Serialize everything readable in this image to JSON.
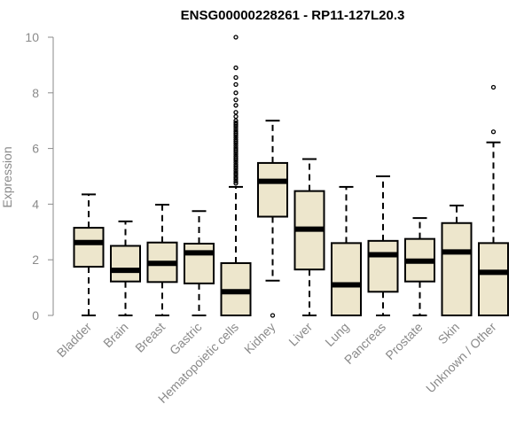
{
  "chart_data": {
    "type": "boxplot",
    "title": "ENSG00000228261 - RP11-127L20.3",
    "xlabel": "",
    "ylabel": "Expression",
    "ylim": [
      0,
      10
    ],
    "yticks": [
      0,
      2,
      4,
      6,
      8,
      10
    ],
    "box_fill": "#ede6cc",
    "axis_color": "#8a8a8a",
    "categories": [
      "Bladder",
      "Brain",
      "Breast",
      "Gastric",
      "Hematopoietic cells",
      "Kidney",
      "Liver",
      "Lung",
      "Pancreas",
      "Prostate",
      "Skin",
      "Unknown / Other"
    ],
    "boxes": [
      {
        "name": "Bladder",
        "min": 0,
        "q1": 1.75,
        "median": 2.62,
        "q3": 3.15,
        "max": 4.35,
        "outliers": []
      },
      {
        "name": "Brain",
        "min": 0,
        "q1": 1.22,
        "median": 1.62,
        "q3": 2.5,
        "max": 3.38,
        "outliers": []
      },
      {
        "name": "Breast",
        "min": 0,
        "q1": 1.2,
        "median": 1.87,
        "q3": 2.62,
        "max": 3.98,
        "outliers": []
      },
      {
        "name": "Gastric",
        "min": 0,
        "q1": 1.15,
        "median": 2.25,
        "q3": 2.58,
        "max": 3.75,
        "outliers": []
      },
      {
        "name": "Hematopoietic cells",
        "min": 0,
        "q1": 0,
        "median": 0.85,
        "q3": 1.88,
        "max": 4.62,
        "outliers": [
          4.75,
          4.82,
          4.9,
          4.97,
          5.05,
          5.12,
          5.2,
          5.28,
          5.35,
          5.42,
          5.5,
          5.58,
          5.65,
          5.72,
          5.8,
          5.88,
          5.95,
          6.02,
          6.1,
          6.18,
          6.25,
          6.32,
          6.4,
          6.48,
          6.55,
          6.62,
          6.7,
          6.78,
          6.85,
          6.92,
          7.0,
          7.15,
          7.3,
          7.55,
          7.75,
          8.0,
          8.3,
          8.55,
          8.9,
          10.0
        ]
      },
      {
        "name": "Kidney",
        "min": 1.25,
        "q1": 3.55,
        "median": 4.82,
        "q3": 5.48,
        "max": 7.0,
        "outliers": [
          0
        ]
      },
      {
        "name": "Liver",
        "min": 0,
        "q1": 1.65,
        "median": 3.1,
        "q3": 4.47,
        "max": 5.62,
        "outliers": []
      },
      {
        "name": "Lung",
        "min": 0,
        "q1": 0,
        "median": 1.1,
        "q3": 2.6,
        "max": 4.62,
        "outliers": []
      },
      {
        "name": "Pancreas",
        "min": 0,
        "q1": 0.85,
        "median": 2.18,
        "q3": 2.68,
        "max": 5.0,
        "outliers": []
      },
      {
        "name": "Prostate",
        "min": 0,
        "q1": 1.22,
        "median": 1.95,
        "q3": 2.75,
        "max": 3.5,
        "outliers": []
      },
      {
        "name": "Skin",
        "min": 0,
        "q1": 0,
        "median": 2.28,
        "q3": 3.32,
        "max": 3.95,
        "outliers": []
      },
      {
        "name": "Unknown / Other",
        "min": 0,
        "q1": 0,
        "median": 1.55,
        "q3": 2.6,
        "max": 6.22,
        "outliers": [
          6.6,
          8.2
        ]
      }
    ]
  }
}
